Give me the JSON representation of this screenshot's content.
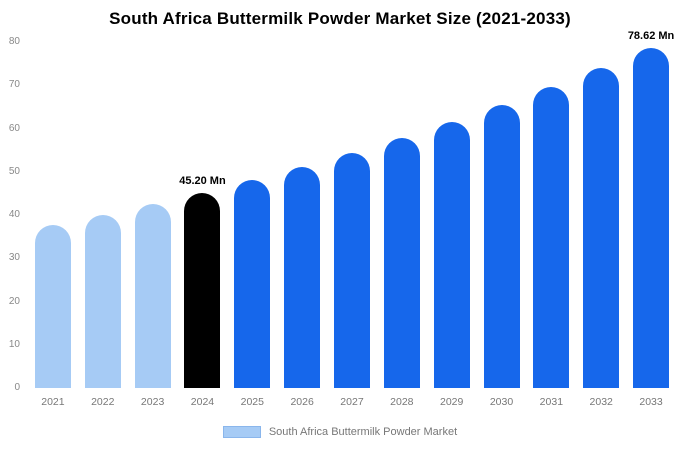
{
  "chart_data": {
    "type": "bar",
    "title": "South Africa Buttermilk Powder Market Size (2021-2033)",
    "categories": [
      "2021",
      "2022",
      "2023",
      "2024",
      "2025",
      "2026",
      "2027",
      "2028",
      "2029",
      "2030",
      "2031",
      "2032",
      "2033"
    ],
    "values": [
      37.6,
      40.0,
      42.5,
      45.2,
      48.1,
      51.1,
      54.4,
      57.8,
      61.5,
      65.4,
      69.5,
      73.9,
      78.62
    ],
    "xlabel": "",
    "ylabel": "",
    "ylim": [
      0,
      80
    ],
    "ytick_step": 10,
    "grid": false,
    "legend_position": "bottom",
    "colors": [
      "#a6cbf5",
      "#a6cbf5",
      "#a6cbf5",
      "#000000",
      "#1667eb",
      "#1667eb",
      "#1667eb",
      "#1667eb",
      "#1667eb",
      "#1667eb",
      "#1667eb",
      "#1667eb",
      "#1667eb"
    ],
    "annotations": [
      {
        "category": "2024",
        "text": "45.20 Mn"
      },
      {
        "category": "2033",
        "text": "78.62 Mn"
      }
    ]
  },
  "legend": {
    "label": "South Africa Buttermilk Powder Market",
    "swatch_color": "#a6cbf5"
  }
}
